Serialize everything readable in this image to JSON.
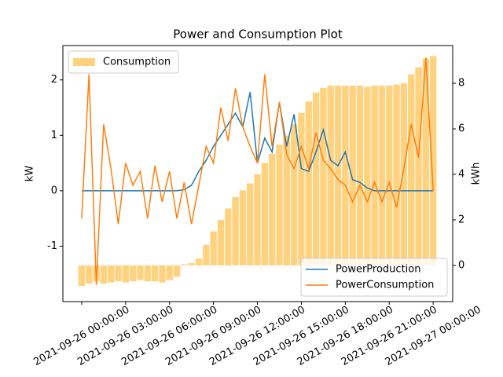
{
  "chart_data": {
    "type": "combo",
    "title": "Power and Consumption Plot",
    "ylabel": "kW",
    "y2label": "kWh",
    "x": [
      "2021-09-26 00:00:00",
      "2021-09-26 00:30:00",
      "2021-09-26 01:00:00",
      "2021-09-26 01:30:00",
      "2021-09-26 02:00:00",
      "2021-09-26 02:30:00",
      "2021-09-26 03:00:00",
      "2021-09-26 03:30:00",
      "2021-09-26 04:00:00",
      "2021-09-26 04:30:00",
      "2021-09-26 05:00:00",
      "2021-09-26 05:30:00",
      "2021-09-26 06:00:00",
      "2021-09-26 06:30:00",
      "2021-09-26 07:00:00",
      "2021-09-26 07:30:00",
      "2021-09-26 08:00:00",
      "2021-09-26 08:30:00",
      "2021-09-26 09:00:00",
      "2021-09-26 09:30:00",
      "2021-09-26 10:00:00",
      "2021-09-26 10:30:00",
      "2021-09-26 11:00:00",
      "2021-09-26 11:30:00",
      "2021-09-26 12:00:00",
      "2021-09-26 12:30:00",
      "2021-09-26 13:00:00",
      "2021-09-26 13:30:00",
      "2021-09-26 14:00:00",
      "2021-09-26 14:30:00",
      "2021-09-26 15:00:00",
      "2021-09-26 15:30:00",
      "2021-09-26 16:00:00",
      "2021-09-26 16:30:00",
      "2021-09-26 17:00:00",
      "2021-09-26 17:30:00",
      "2021-09-26 18:00:00",
      "2021-09-26 18:30:00",
      "2021-09-26 19:00:00",
      "2021-09-26 19:30:00",
      "2021-09-26 20:00:00",
      "2021-09-26 20:30:00",
      "2021-09-26 21:00:00",
      "2021-09-26 21:30:00",
      "2021-09-26 22:00:00",
      "2021-09-26 22:30:00",
      "2021-09-26 23:00:00",
      "2021-09-26 23:30:00",
      "2021-09-27 00:00:00"
    ],
    "series": [
      {
        "name": "Consumption",
        "type": "bar",
        "axis": "y2",
        "color": "#ffd280",
        "values": [
          -0.9,
          -0.8,
          -0.7,
          -0.8,
          -0.75,
          -0.7,
          -0.75,
          -0.7,
          -0.65,
          -0.7,
          -0.7,
          -0.75,
          -0.65,
          -0.5,
          0.05,
          0.1,
          0.3,
          0.9,
          1.5,
          2.0,
          2.5,
          3.0,
          3.3,
          3.6,
          4.0,
          4.5,
          4.9,
          5.3,
          5.7,
          6.2,
          6.7,
          7.2,
          7.6,
          7.8,
          7.9,
          7.9,
          7.9,
          7.9,
          7.9,
          7.85,
          7.9,
          7.9,
          7.9,
          7.95,
          8.0,
          8.4,
          8.7,
          9.1,
          9.2
        ]
      },
      {
        "name": "PowerProduction",
        "type": "line",
        "color": "#1f77b4",
        "values": [
          0,
          0,
          0,
          0,
          0,
          0,
          0,
          0,
          0,
          0,
          0,
          0,
          0,
          0,
          0.02,
          0.1,
          0.35,
          0.55,
          0.8,
          1.0,
          1.2,
          1.4,
          1.15,
          1.78,
          0.5,
          0.95,
          0.7,
          1.6,
          0.8,
          1.38,
          0.4,
          0.35,
          0.7,
          1.1,
          0.55,
          0.45,
          0.7,
          0.2,
          0.15,
          0.05,
          0,
          0,
          0,
          0,
          0,
          0,
          0,
          0,
          0
        ]
      },
      {
        "name": "PowerConsumption",
        "type": "line",
        "color": "#ff7f0e",
        "values": [
          -0.5,
          2.1,
          -1.7,
          1.2,
          0.4,
          -0.6,
          0.5,
          0.1,
          0.35,
          -0.5,
          0.45,
          -0.2,
          0.35,
          -0.5,
          0.15,
          -0.6,
          0.1,
          0.8,
          0.5,
          1.5,
          0.9,
          1.85,
          1.15,
          0.8,
          0.5,
          2.1,
          0.8,
          1.6,
          0.65,
          0.4,
          0.8,
          0.4,
          1.05,
          0.55,
          0.4,
          0.2,
          0.1,
          -0.2,
          0.1,
          -0.2,
          0.15,
          -0.2,
          0.15,
          -0.3,
          0.4,
          1.2,
          0.6,
          2.4,
          0
        ]
      }
    ],
    "xlim": [
      "2021-09-25 22:43:00",
      "2021-09-27 01:20:00"
    ],
    "xticks": [
      "2021-09-26 00:00:00",
      "2021-09-26 03:00:00",
      "2021-09-26 06:00:00",
      "2021-09-26 09:00:00",
      "2021-09-26 12:00:00",
      "2021-09-26 15:00:00",
      "2021-09-26 18:00:00",
      "2021-09-26 21:00:00",
      "2021-09-27 00:00:00"
    ],
    "ylim": [
      -2.0,
      2.62
    ],
    "yticks": [
      -1,
      0,
      1,
      2
    ],
    "y2lim": [
      -1.59,
      9.66
    ],
    "y2ticks": [
      0,
      2,
      4,
      6,
      8
    ],
    "legend": "lower right",
    "legend_y2": "upper left"
  }
}
